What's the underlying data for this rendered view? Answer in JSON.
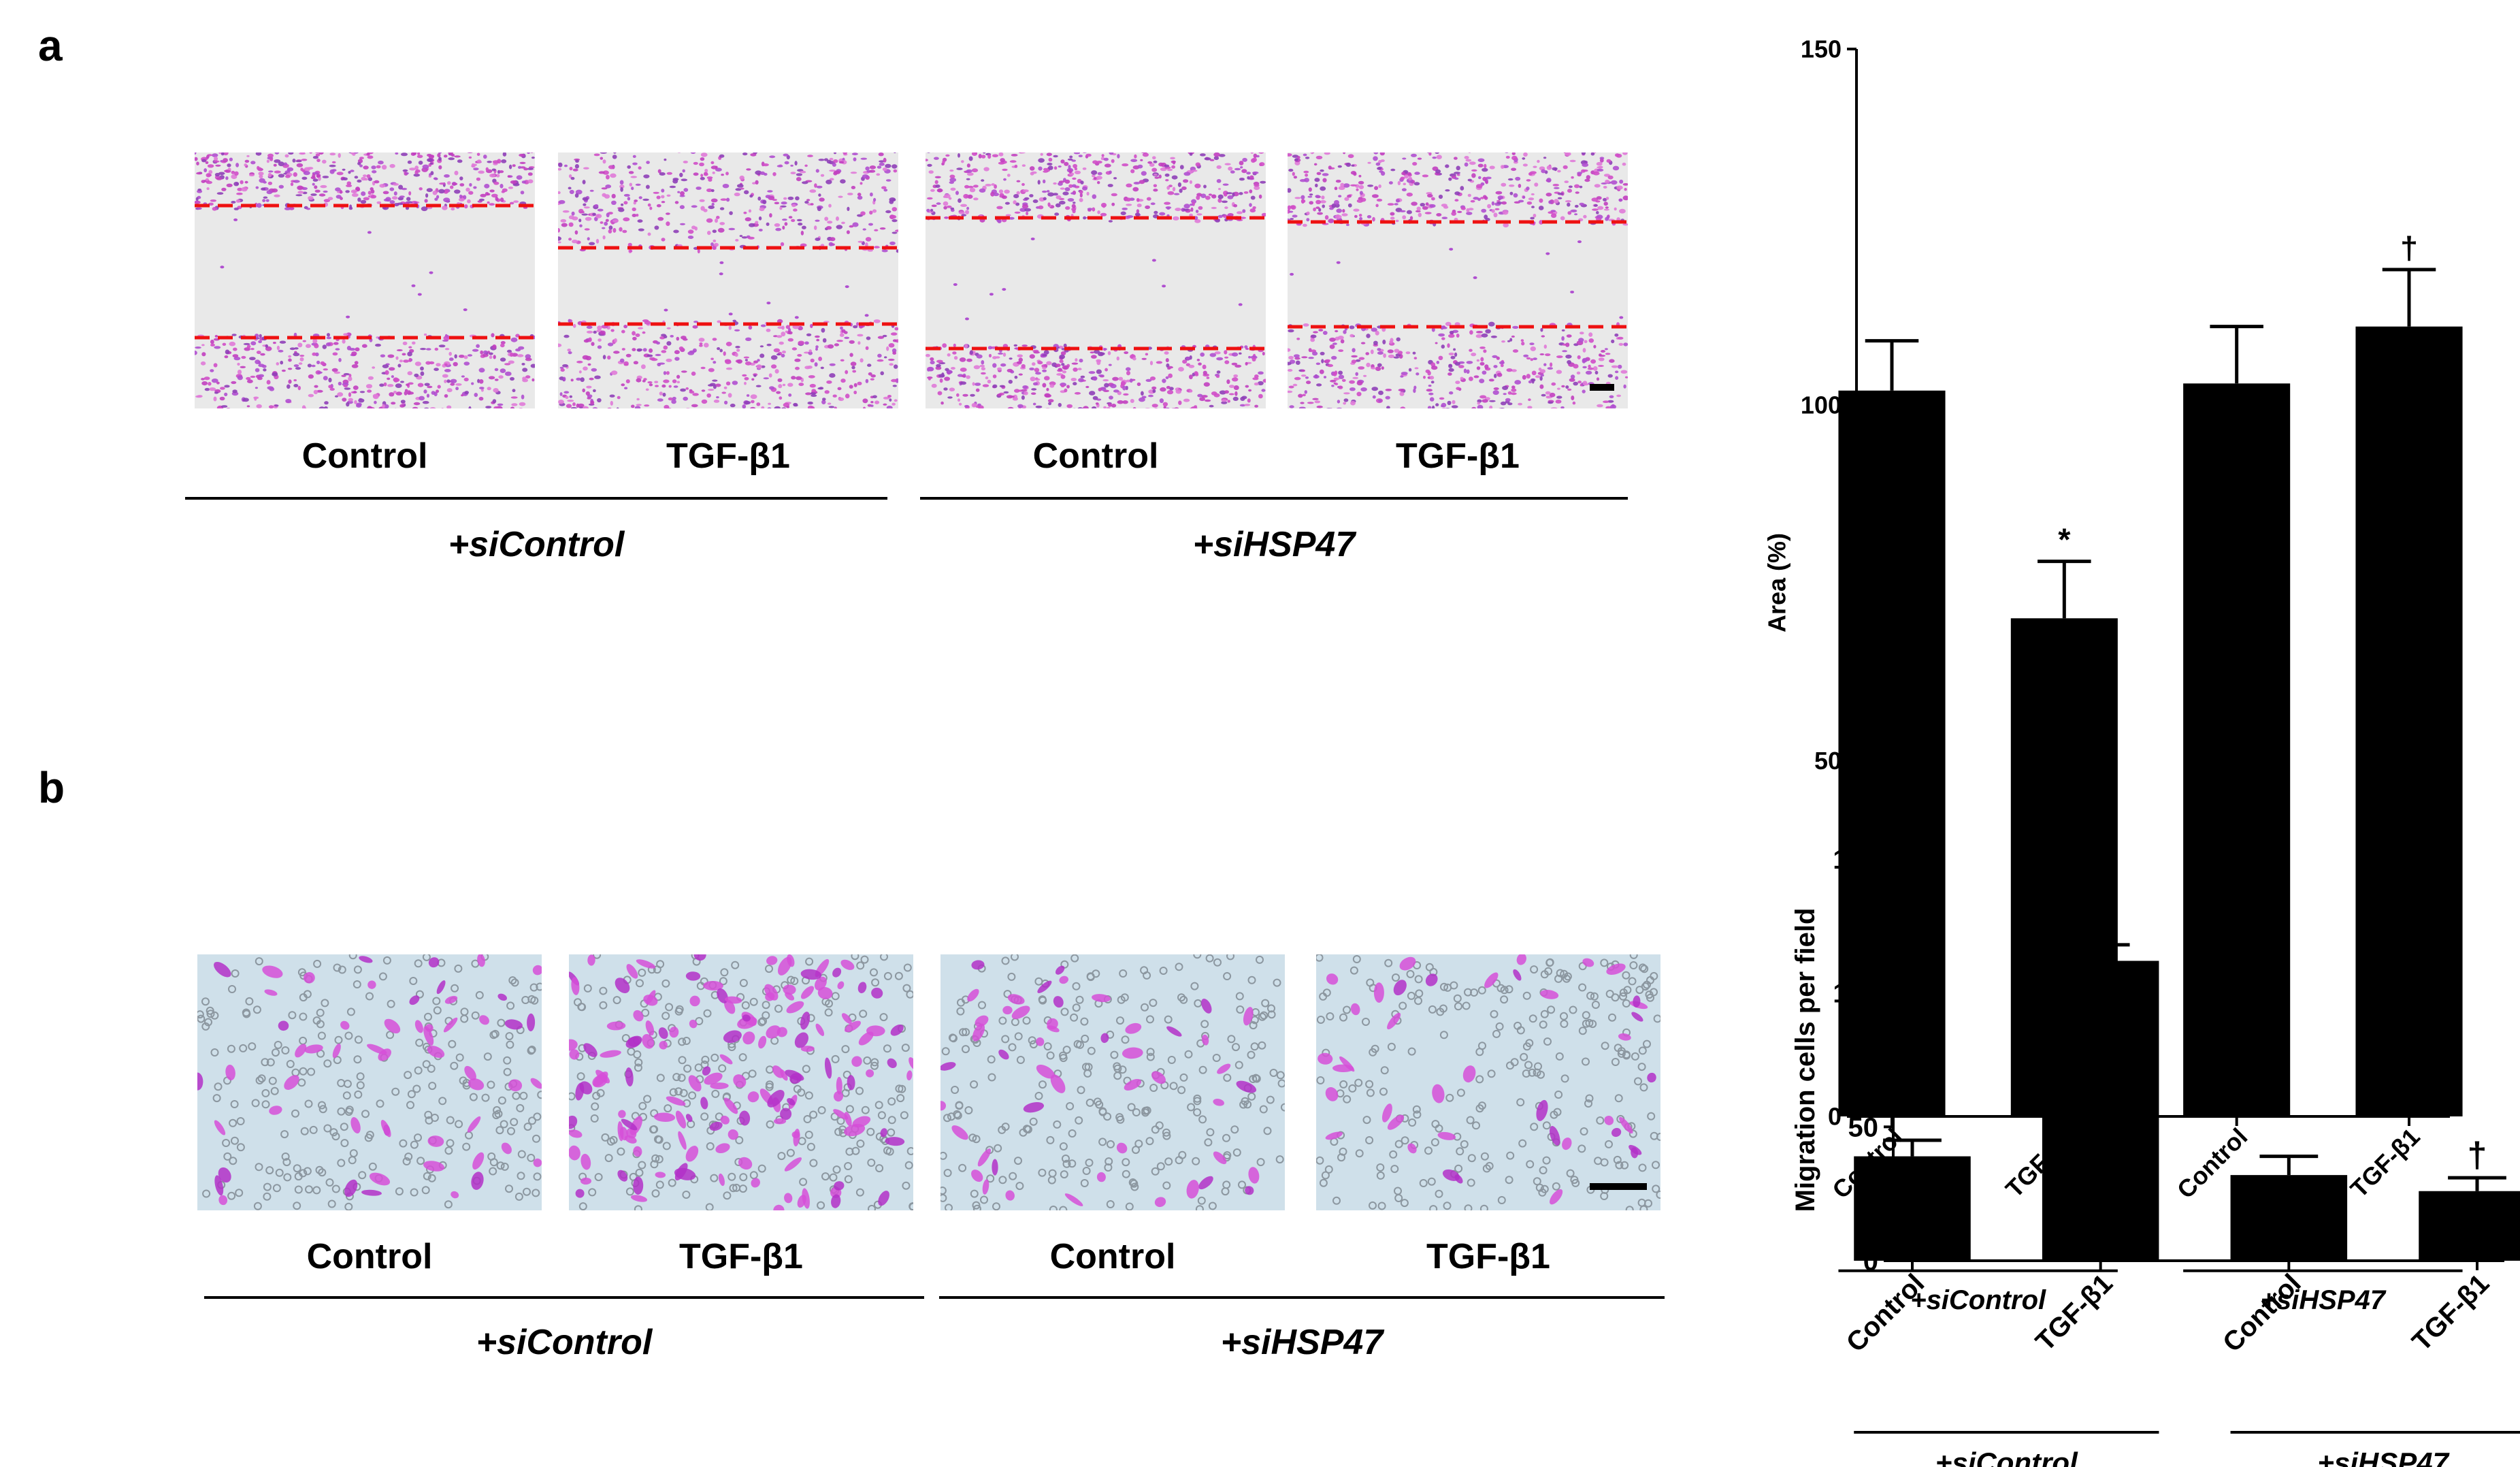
{
  "panels": [
    {
      "letter": "a",
      "images": [
        {
          "label": "Control"
        },
        {
          "label": "TGF-β1"
        },
        {
          "label": "Control"
        },
        {
          "label": "TGF-β1"
        }
      ],
      "groups": [
        {
          "label": "+siControl"
        },
        {
          "label": "+siHSP47"
        }
      ]
    },
    {
      "letter": "b",
      "images": [
        {
          "label": "Control"
        },
        {
          "label": "TGF-β1"
        },
        {
          "label": "Control"
        },
        {
          "label": "TGF-β1"
        }
      ],
      "groups": [
        {
          "label": "+siControl"
        },
        {
          "label": "+siHSP47"
        }
      ]
    }
  ],
  "chart_data": [
    {
      "type": "bar",
      "categories": [
        "Control",
        "TGF-β1",
        "Control",
        "TGF-β1"
      ],
      "values": [
        102,
        70,
        103,
        111
      ],
      "errors": [
        7,
        8,
        8,
        8
      ],
      "annotations": [
        "",
        "*",
        "",
        "†"
      ],
      "ylabel": "Area (%)",
      "ylim": [
        0,
        150
      ],
      "yticks": [
        0,
        50,
        100,
        150
      ],
      "groups": [
        {
          "label": "+siControl",
          "categories": [
            0,
            1
          ]
        },
        {
          "label": "+siHSP47",
          "categories": [
            2,
            3
          ]
        }
      ],
      "colors": {
        "bar": "#000000"
      },
      "grid": false
    },
    {
      "type": "bar",
      "categories": [
        "Control",
        "TGF-β1",
        "Control",
        "TGF-β1"
      ],
      "values": [
        39,
        112,
        32,
        26
      ],
      "errors": [
        6,
        6,
        7,
        5
      ],
      "annotations": [
        "",
        "*",
        "",
        "†"
      ],
      "ylabel": "Migration cells per field",
      "ylim": [
        0,
        150
      ],
      "yticks": [
        0,
        50,
        100,
        150
      ],
      "groups": [
        {
          "label": "+siControl",
          "categories": [
            0,
            1
          ]
        },
        {
          "label": "+siHSP47",
          "categories": [
            2,
            3
          ]
        }
      ],
      "colors": {
        "bar": "#000000"
      },
      "grid": false
    }
  ]
}
